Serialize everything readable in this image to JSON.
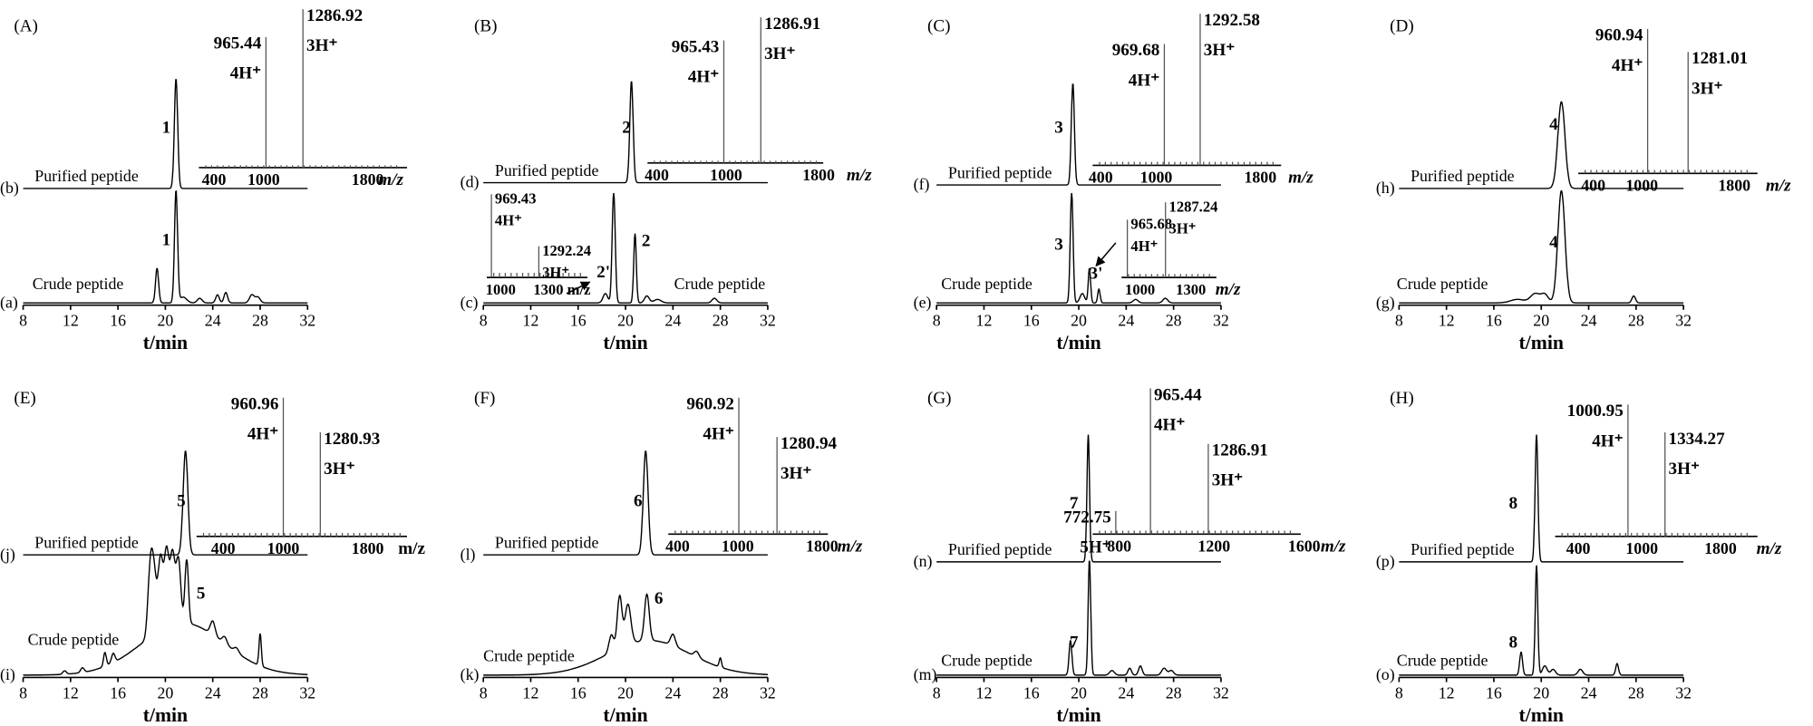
{
  "panels": [
    {
      "letter": "(A)",
      "upper": {
        "tag": "(b)",
        "label": "Purified peptide",
        "peak": "1"
      },
      "lower": {
        "tag": "(a)",
        "label": "Crude peptide",
        "peak": "1"
      },
      "ms": {
        "peaks": [
          {
            "mz": "965.44",
            "ion": "4H⁺"
          },
          {
            "mz": "1286.92",
            "ion": "3H⁺"
          }
        ],
        "ticks": [
          "400",
          "1000",
          "1800"
        ],
        "unit": "m/z"
      },
      "x_ticks": [
        8,
        12,
        16,
        20,
        24,
        28,
        32
      ],
      "x_label": "t/min"
    },
    {
      "letter": "(B)",
      "upper": {
        "tag": "(d)",
        "label": "Purified peptide",
        "peak": "2"
      },
      "lower": {
        "tag": "(c)",
        "label": "Crude peptide",
        "peak": "2",
        "impurity": "2'",
        "inset": {
          "peaks": [
            {
              "mz": "969.43",
              "ion": "4H⁺"
            },
            {
              "mz": "1292.24",
              "ion": "3H⁺"
            }
          ],
          "ticks": [
            "1000",
            "1300 m/z"
          ]
        }
      },
      "ms": {
        "peaks": [
          {
            "mz": "965.43",
            "ion": "4H⁺"
          },
          {
            "mz": "1286.91",
            "ion": "3H⁺"
          }
        ],
        "ticks": [
          "400",
          "1000",
          "1800"
        ],
        "unit": "m/z"
      },
      "x_ticks": [
        8,
        12,
        16,
        20,
        24,
        28,
        32
      ],
      "x_label": "t/min"
    },
    {
      "letter": "(C)",
      "upper": {
        "tag": "(f)",
        "label": "Purified peptide",
        "peak": "3"
      },
      "lower": {
        "tag": "(e)",
        "label": "Crude peptide",
        "peak": "3",
        "impurity": "3'",
        "inset": {
          "peaks": [
            {
              "mz": "965.68",
              "ion": "4H⁺"
            },
            {
              "mz": "1287.24",
              "ion": "3H⁺"
            }
          ],
          "ticks": [
            "1000",
            "1300"
          ],
          "unit": "m/z"
        }
      },
      "ms": {
        "peaks": [
          {
            "mz": "969.68",
            "ion": "4H⁺"
          },
          {
            "mz": "1292.58",
            "ion": "3H⁺"
          }
        ],
        "ticks": [
          "400",
          "1000",
          "1800"
        ],
        "unit": "m/z"
      },
      "x_ticks": [
        8,
        12,
        16,
        20,
        24,
        28,
        32
      ],
      "x_label": "t/min"
    },
    {
      "letter": "(D)",
      "upper": {
        "tag": "(h)",
        "label": "Purified peptide",
        "peak": "4"
      },
      "lower": {
        "tag": "(g)",
        "label": "Crude peptide",
        "peak": "4"
      },
      "ms": {
        "peaks": [
          {
            "mz": "960.94",
            "ion": "4H⁺"
          },
          {
            "mz": "1281.01",
            "ion": "3H⁺"
          }
        ],
        "ticks": [
          "400",
          "1000",
          "1800"
        ],
        "unit": "m/z"
      },
      "x_ticks": [
        8,
        12,
        16,
        20,
        24,
        28,
        32
      ],
      "x_label": "t/min"
    },
    {
      "letter": "(E)",
      "upper": {
        "tag": "(j)",
        "label": "Purified peptide",
        "peak": "5"
      },
      "lower": {
        "tag": "(i)",
        "label": "Crude peptide",
        "peak": "5"
      },
      "ms": {
        "peaks": [
          {
            "mz": "960.96",
            "ion": "4H⁺"
          },
          {
            "mz": "1280.93",
            "ion": "3H⁺"
          }
        ],
        "ticks": [
          "400",
          "1000",
          "1800"
        ],
        "unit": "m/z"
      },
      "x_ticks": [
        8,
        12,
        16,
        20,
        24,
        28,
        32
      ],
      "x_label": "t/min"
    },
    {
      "letter": "(F)",
      "upper": {
        "tag": "(l)",
        "label": "Purified peptide",
        "peak": "6"
      },
      "lower": {
        "tag": "(k)",
        "label": "Crude peptide",
        "peak": "6"
      },
      "ms": {
        "peaks": [
          {
            "mz": "960.92",
            "ion": "4H⁺"
          },
          {
            "mz": "1280.94",
            "ion": "3H⁺"
          }
        ],
        "ticks": [
          "400",
          "1000",
          "1800"
        ],
        "unit": "m/z"
      },
      "x_ticks": [
        8,
        12,
        16,
        20,
        24,
        28,
        32
      ],
      "x_label": "t/min"
    },
    {
      "letter": "(G)",
      "upper": {
        "tag": "(n)",
        "label": "Purified peptide",
        "peak": "7"
      },
      "lower": {
        "tag": "(m)",
        "label": "Crude peptide",
        "peak": "7"
      },
      "ms": {
        "peaks": [
          {
            "mz": "772.75",
            "ion": "5H⁺"
          },
          {
            "mz": "965.44",
            "ion": "4H⁺"
          },
          {
            "mz": "1286.91",
            "ion": "3H⁺"
          }
        ],
        "ticks": [
          "800",
          "1200",
          "1600"
        ],
        "unit": "m/z"
      },
      "x_ticks": [
        8,
        12,
        16,
        20,
        24,
        28,
        32
      ],
      "x_label": "t/min"
    },
    {
      "letter": "(H)",
      "upper": {
        "tag": "(p)",
        "label": "Purified peptide",
        "peak": "8"
      },
      "lower": {
        "tag": "(o)",
        "label": "Crude peptide",
        "peak": "8"
      },
      "ms": {
        "peaks": [
          {
            "mz": "1000.95",
            "ion": "4H⁺"
          },
          {
            "mz": "1334.27",
            "ion": "3H⁺"
          }
        ],
        "ticks": [
          "400",
          "1000",
          "1800"
        ],
        "unit": "m/z"
      },
      "x_ticks": [
        8,
        12,
        16,
        20,
        24,
        28,
        32
      ],
      "x_label": "t/min"
    }
  ]
}
